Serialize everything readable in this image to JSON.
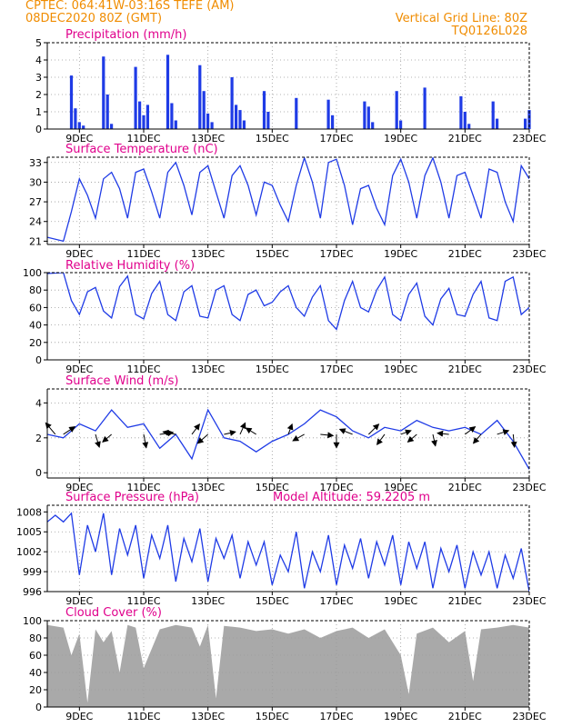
{
  "header": {
    "line1": "CPTEC:   064:41W-03:16S   TEFE (AM)",
    "line2": "08DEC2020 80Z (GMT)",
    "grid_note": "Vertical Grid Line: 80Z",
    "code": "TQ0126L028"
  },
  "colors": {
    "header": "#f08c00",
    "title": "#e0008c",
    "series": "#1f3be6",
    "cloud": "#a9a9a9",
    "grid": "#9a9a9a"
  },
  "x_axis": {
    "type": "date",
    "start": "2020-12-08T00:00Z",
    "end": "2020-12-23T00:00Z",
    "ticks": [
      {
        "label": "9DEC",
        "date": "2020-12-09"
      },
      {
        "label": "11DEC",
        "date": "2020-12-11"
      },
      {
        "label": "13DEC",
        "date": "2020-12-13"
      },
      {
        "label": "15DEC",
        "date": "2020-12-15"
      },
      {
        "label": "17DEC",
        "date": "2020-12-17"
      },
      {
        "label": "19DEC",
        "date": "2020-12-19"
      },
      {
        "label": "21DEC",
        "date": "2020-12-21"
      },
      {
        "label": "23DEC",
        "date": "2020-12-23"
      }
    ]
  },
  "chart_data": [
    {
      "type": "bar",
      "title": "Precipitation (mm/h)",
      "ylim": [
        0,
        5
      ],
      "yticks": [
        0,
        1,
        2,
        3,
        4,
        5
      ],
      "grid": true,
      "times": [
        "2020-12-08T18Z",
        "2020-12-08T21Z",
        "2020-12-09T00Z",
        "2020-12-09T03Z",
        "2020-12-09T18Z",
        "2020-12-09T21Z",
        "2020-12-10T00Z",
        "2020-12-10T18Z",
        "2020-12-10T21Z",
        "2020-12-11T00Z",
        "2020-12-11T03Z",
        "2020-12-11T18Z",
        "2020-12-11T21Z",
        "2020-12-12T00Z",
        "2020-12-12T18Z",
        "2020-12-12T21Z",
        "2020-12-13T00Z",
        "2020-12-13T03Z",
        "2020-12-13T18Z",
        "2020-12-13T21Z",
        "2020-12-14T00Z",
        "2020-12-14T03Z",
        "2020-12-14T18Z",
        "2020-12-14T21Z",
        "2020-12-15T18Z",
        "2020-12-16T18Z",
        "2020-12-16T21Z",
        "2020-12-17T21Z",
        "2020-12-18T00Z",
        "2020-12-18T03Z",
        "2020-12-18T21Z",
        "2020-12-19T00Z",
        "2020-12-19T18Z",
        "2020-12-20T21Z",
        "2020-12-21T00Z",
        "2020-12-21T03Z",
        "2020-12-21T21Z",
        "2020-12-22T00Z",
        "2020-12-22T21Z",
        "2020-12-23T00Z"
      ],
      "values": [
        3.1,
        1.2,
        0.4,
        0.2,
        4.2,
        2.0,
        0.3,
        3.6,
        1.6,
        0.8,
        1.4,
        4.3,
        1.5,
        0.5,
        3.7,
        2.2,
        0.9,
        0.4,
        3.0,
        1.4,
        1.1,
        0.5,
        2.2,
        1.0,
        1.8,
        1.7,
        0.8,
        1.6,
        1.3,
        0.4,
        2.2,
        0.5,
        2.4,
        1.9,
        1.0,
        0.3,
        1.6,
        0.6,
        0.6,
        1.1
      ]
    },
    {
      "type": "line",
      "title": "Surface Temperature (nC)",
      "ylim": [
        20.5,
        33.8
      ],
      "yticks": [
        21,
        24,
        27,
        30,
        33
      ],
      "grid": true,
      "times": [
        "2020-12-08T00Z",
        "2020-12-08T12Z",
        "2020-12-08T18Z",
        "2020-12-09T00Z",
        "2020-12-09T06Z",
        "2020-12-09T12Z",
        "2020-12-09T18Z",
        "2020-12-10T00Z",
        "2020-12-10T06Z",
        "2020-12-10T12Z",
        "2020-12-10T18Z",
        "2020-12-11T00Z",
        "2020-12-11T06Z",
        "2020-12-11T12Z",
        "2020-12-11T18Z",
        "2020-12-12T00Z",
        "2020-12-12T06Z",
        "2020-12-12T12Z",
        "2020-12-12T18Z",
        "2020-12-13T00Z",
        "2020-12-13T06Z",
        "2020-12-13T12Z",
        "2020-12-13T18Z",
        "2020-12-14T00Z",
        "2020-12-14T06Z",
        "2020-12-14T12Z",
        "2020-12-14T18Z",
        "2020-12-15T00Z",
        "2020-12-15T06Z",
        "2020-12-15T12Z",
        "2020-12-15T18Z",
        "2020-12-16T00Z",
        "2020-12-16T06Z",
        "2020-12-16T12Z",
        "2020-12-16T18Z",
        "2020-12-17T00Z",
        "2020-12-17T06Z",
        "2020-12-17T12Z",
        "2020-12-17T18Z",
        "2020-12-18T00Z",
        "2020-12-18T06Z",
        "2020-12-18T12Z",
        "2020-12-18T18Z",
        "2020-12-19T00Z",
        "2020-12-19T06Z",
        "2020-12-19T12Z",
        "2020-12-19T18Z",
        "2020-12-20T00Z",
        "2020-12-20T06Z",
        "2020-12-20T12Z",
        "2020-12-20T18Z",
        "2020-12-21T00Z",
        "2020-12-21T06Z",
        "2020-12-21T12Z",
        "2020-12-21T18Z",
        "2020-12-22T00Z",
        "2020-12-22T06Z",
        "2020-12-22T12Z",
        "2020-12-22T18Z",
        "2020-12-23T00Z"
      ],
      "values": [
        21.6,
        21.0,
        25.5,
        30.5,
        28.0,
        24.5,
        30.5,
        31.5,
        29.0,
        24.5,
        31.5,
        32.0,
        28.5,
        24.5,
        31.5,
        33.0,
        29.5,
        25.0,
        31.5,
        32.5,
        28.5,
        24.5,
        31.0,
        32.5,
        29.5,
        25.0,
        30.0,
        29.5,
        26.5,
        24.0,
        29.5,
        33.7,
        30.0,
        24.5,
        33.0,
        33.5,
        29.5,
        23.5,
        29.0,
        29.5,
        26.0,
        23.5,
        31.0,
        33.5,
        30.0,
        24.5,
        31.0,
        33.7,
        30.0,
        24.5,
        31.0,
        31.5,
        28.0,
        24.5,
        32.0,
        31.5,
        27.0,
        24.0,
        32.5,
        30.5
      ]
    },
    {
      "type": "line",
      "title": "Relative Humidity (%)",
      "ylim": [
        0,
        100
      ],
      "yticks": [
        0,
        20,
        40,
        60,
        80,
        100
      ],
      "grid": true,
      "times": [
        "2020-12-08T00Z",
        "2020-12-08T12Z",
        "2020-12-08T18Z",
        "2020-12-09T00Z",
        "2020-12-09T06Z",
        "2020-12-09T12Z",
        "2020-12-09T18Z",
        "2020-12-10T00Z",
        "2020-12-10T06Z",
        "2020-12-10T12Z",
        "2020-12-10T18Z",
        "2020-12-11T00Z",
        "2020-12-11T06Z",
        "2020-12-11T12Z",
        "2020-12-11T18Z",
        "2020-12-12T00Z",
        "2020-12-12T06Z",
        "2020-12-12T12Z",
        "2020-12-12T18Z",
        "2020-12-13T00Z",
        "2020-12-13T06Z",
        "2020-12-13T12Z",
        "2020-12-13T18Z",
        "2020-12-14T00Z",
        "2020-12-14T06Z",
        "2020-12-14T12Z",
        "2020-12-14T18Z",
        "2020-12-15T00Z",
        "2020-12-15T06Z",
        "2020-12-15T12Z",
        "2020-12-15T18Z",
        "2020-12-16T00Z",
        "2020-12-16T06Z",
        "2020-12-16T12Z",
        "2020-12-16T18Z",
        "2020-12-17T00Z",
        "2020-12-17T06Z",
        "2020-12-17T12Z",
        "2020-12-17T18Z",
        "2020-12-18T00Z",
        "2020-12-18T06Z",
        "2020-12-18T12Z",
        "2020-12-18T18Z",
        "2020-12-19T00Z",
        "2020-12-19T06Z",
        "2020-12-19T12Z",
        "2020-12-19T18Z",
        "2020-12-20T00Z",
        "2020-12-20T06Z",
        "2020-12-20T12Z",
        "2020-12-20T18Z",
        "2020-12-21T00Z",
        "2020-12-21T06Z",
        "2020-12-21T12Z",
        "2020-12-21T18Z",
        "2020-12-22T00Z",
        "2020-12-22T06Z",
        "2020-12-22T12Z",
        "2020-12-22T18Z",
        "2020-12-23T00Z"
      ],
      "values": [
        99,
        100,
        68,
        52,
        78,
        83,
        56,
        48,
        84,
        96,
        52,
        47,
        76,
        90,
        52,
        45,
        78,
        85,
        50,
        48,
        80,
        85,
        52,
        45,
        75,
        80,
        62,
        66,
        78,
        85,
        60,
        50,
        72,
        85,
        45,
        35,
        68,
        90,
        60,
        55,
        80,
        95,
        52,
        45,
        75,
        88,
        50,
        40,
        70,
        82,
        52,
        50,
        75,
        90,
        48,
        45,
        90,
        95,
        52,
        60
      ]
    },
    {
      "type": "line",
      "title": "Surface Wind (m/s)",
      "ylim": [
        -0.3,
        4.8
      ],
      "yticks": [
        0,
        2,
        4
      ],
      "grid": true,
      "times": [
        "2020-12-08T00Z",
        "2020-12-08T12Z",
        "2020-12-09T00Z",
        "2020-12-09T12Z",
        "2020-12-10T00Z",
        "2020-12-10T12Z",
        "2020-12-11T00Z",
        "2020-12-11T12Z",
        "2020-12-12T00Z",
        "2020-12-12T12Z",
        "2020-12-13T00Z",
        "2020-12-13T12Z",
        "2020-12-14T00Z",
        "2020-12-14T12Z",
        "2020-12-15T00Z",
        "2020-12-15T12Z",
        "2020-12-16T00Z",
        "2020-12-16T12Z",
        "2020-12-17T00Z",
        "2020-12-17T12Z",
        "2020-12-18T00Z",
        "2020-12-18T12Z",
        "2020-12-19T00Z",
        "2020-12-19T12Z",
        "2020-12-20T00Z",
        "2020-12-20T12Z",
        "2020-12-21T00Z",
        "2020-12-21T12Z",
        "2020-12-22T00Z",
        "2020-12-22T12Z",
        "2020-12-23T00Z"
      ],
      "values": [
        2.2,
        2.0,
        2.8,
        2.4,
        3.6,
        2.6,
        2.8,
        1.4,
        2.2,
        0.8,
        3.6,
        2.0,
        1.8,
        1.2,
        1.8,
        2.2,
        2.8,
        3.6,
        3.2,
        2.4,
        2.0,
        2.6,
        2.4,
        3.0,
        2.6,
        2.4,
        2.6,
        2.2,
        3.0,
        1.8,
        0.2
      ],
      "vectors": [
        {
          "time": "2020-12-08T06Z",
          "u": -1.5,
          "v": 1.8
        },
        {
          "time": "2020-12-08T12Z",
          "u": 1.8,
          "v": 1.2
        },
        {
          "time": "2020-12-09T12Z",
          "u": 0.6,
          "v": -2.0
        },
        {
          "time": "2020-12-10T00Z",
          "u": -1.4,
          "v": -1.2
        },
        {
          "time": "2020-12-11T00Z",
          "u": 0.4,
          "v": -2.1
        },
        {
          "time": "2020-12-11T12Z",
          "u": 2.1,
          "v": 0.3
        },
        {
          "time": "2020-12-12T00Z",
          "u": -2.0,
          "v": 0.4
        },
        {
          "time": "2020-12-12T12Z",
          "u": 1.2,
          "v": 1.6
        },
        {
          "time": "2020-12-13T00Z",
          "u": -1.6,
          "v": -1.4
        },
        {
          "time": "2020-12-13T12Z",
          "u": 1.8,
          "v": 0.4
        },
        {
          "time": "2020-12-14T00Z",
          "u": 0.8,
          "v": 1.8
        },
        {
          "time": "2020-12-14T12Z",
          "u": -1.6,
          "v": 1.0
        },
        {
          "time": "2020-12-15T12Z",
          "u": 0.6,
          "v": 1.6
        },
        {
          "time": "2020-12-16T00Z",
          "u": -1.8,
          "v": -1.0
        },
        {
          "time": "2020-12-16T12Z",
          "u": 2.0,
          "v": -0.2
        },
        {
          "time": "2020-12-17T00Z",
          "u": 0.0,
          "v": -2.1
        },
        {
          "time": "2020-12-17T12Z",
          "u": -2.0,
          "v": 0.8
        },
        {
          "time": "2020-12-18T00Z",
          "u": 1.6,
          "v": 1.6
        },
        {
          "time": "2020-12-18T12Z",
          "u": -1.2,
          "v": -1.6
        },
        {
          "time": "2020-12-19T00Z",
          "u": 1.6,
          "v": 0.6
        },
        {
          "time": "2020-12-19T12Z",
          "u": -1.4,
          "v": -1.2
        },
        {
          "time": "2020-12-20T00Z",
          "u": 0.4,
          "v": -1.8
        },
        {
          "time": "2020-12-20T12Z",
          "u": -1.8,
          "v": 0.2
        },
        {
          "time": "2020-12-21T00Z",
          "u": 1.6,
          "v": 1.2
        },
        {
          "time": "2020-12-21T12Z",
          "u": -1.2,
          "v": -1.4
        },
        {
          "time": "2020-12-22T00Z",
          "u": 1.8,
          "v": 0.6
        },
        {
          "time": "2020-12-22T12Z",
          "u": 0.2,
          "v": -2.0
        }
      ]
    },
    {
      "type": "line",
      "title": "Surface Pressure (hPa)",
      "annotation": "Model Altitude: 59.2205 m",
      "ylim": [
        996,
        1009
      ],
      "yticks": [
        996,
        999,
        1002,
        1005,
        1008
      ],
      "grid": true,
      "times": [
        "2020-12-08T00Z",
        "2020-12-08T06Z",
        "2020-12-08T12Z",
        "2020-12-08T18Z",
        "2020-12-09T00Z",
        "2020-12-09T06Z",
        "2020-12-09T12Z",
        "2020-12-09T18Z",
        "2020-12-10T00Z",
        "2020-12-10T06Z",
        "2020-12-10T12Z",
        "2020-12-10T18Z",
        "2020-12-11T00Z",
        "2020-12-11T06Z",
        "2020-12-11T12Z",
        "2020-12-11T18Z",
        "2020-12-12T00Z",
        "2020-12-12T06Z",
        "2020-12-12T12Z",
        "2020-12-12T18Z",
        "2020-12-13T00Z",
        "2020-12-13T06Z",
        "2020-12-13T12Z",
        "2020-12-13T18Z",
        "2020-12-14T00Z",
        "2020-12-14T06Z",
        "2020-12-14T12Z",
        "2020-12-14T18Z",
        "2020-12-15T00Z",
        "2020-12-15T06Z",
        "2020-12-15T12Z",
        "2020-12-15T18Z",
        "2020-12-16T00Z",
        "2020-12-16T06Z",
        "2020-12-16T12Z",
        "2020-12-16T18Z",
        "2020-12-17T00Z",
        "2020-12-17T06Z",
        "2020-12-17T12Z",
        "2020-12-17T18Z",
        "2020-12-18T00Z",
        "2020-12-18T06Z",
        "2020-12-18T12Z",
        "2020-12-18T18Z",
        "2020-12-19T00Z",
        "2020-12-19T06Z",
        "2020-12-19T12Z",
        "2020-12-19T18Z",
        "2020-12-20T00Z",
        "2020-12-20T06Z",
        "2020-12-20T12Z",
        "2020-12-20T18Z",
        "2020-12-21T00Z",
        "2020-12-21T06Z",
        "2020-12-21T12Z",
        "2020-12-21T18Z",
        "2020-12-22T00Z",
        "2020-12-22T06Z",
        "2020-12-22T12Z",
        "2020-12-22T18Z",
        "2020-12-23T00Z"
      ],
      "values": [
        1006.5,
        1007.5,
        1006.5,
        1007.8,
        998.5,
        1006.0,
        1002.0,
        1007.8,
        998.5,
        1005.5,
        1001.5,
        1006.0,
        998.0,
        1004.5,
        1001.0,
        1006.0,
        997.5,
        1004.0,
        1000.5,
        1005.5,
        997.5,
        1004.0,
        1001.0,
        1004.5,
        998.0,
        1003.5,
        1000.0,
        1003.5,
        997.0,
        1001.5,
        999.0,
        1005.0,
        996.5,
        1002.0,
        999.0,
        1004.5,
        997.0,
        1003.0,
        999.5,
        1004.0,
        998.0,
        1003.5,
        1000.0,
        1004.5,
        997.0,
        1003.5,
        999.5,
        1003.5,
        996.5,
        1002.5,
        999.0,
        1003.0,
        996.5,
        1002.0,
        998.5,
        1002.0,
        996.5,
        1001.5,
        998.0,
        1002.5,
        996.0
      ]
    },
    {
      "type": "area",
      "title": "Cloud Cover (%)",
      "ylim": [
        0,
        100
      ],
      "yticks": [
        0,
        20,
        40,
        60,
        80,
        100
      ],
      "grid": true,
      "times": [
        "2020-12-08T00Z",
        "2020-12-08T12Z",
        "2020-12-08T18Z",
        "2020-12-09T00Z",
        "2020-12-09T06Z",
        "2020-12-09T12Z",
        "2020-12-09T18Z",
        "2020-12-10T00Z",
        "2020-12-10T06Z",
        "2020-12-10T12Z",
        "2020-12-10T18Z",
        "2020-12-11T00Z",
        "2020-12-11T12Z",
        "2020-12-12T00Z",
        "2020-12-12T12Z",
        "2020-12-12T18Z",
        "2020-12-13T00Z",
        "2020-12-13T06Z",
        "2020-12-13T12Z",
        "2020-12-14T00Z",
        "2020-12-14T12Z",
        "2020-12-15T00Z",
        "2020-12-15T12Z",
        "2020-12-16T00Z",
        "2020-12-16T12Z",
        "2020-12-17T00Z",
        "2020-12-17T12Z",
        "2020-12-18T00Z",
        "2020-12-18T12Z",
        "2020-12-19T00Z",
        "2020-12-19T06Z",
        "2020-12-19T12Z",
        "2020-12-20T00Z",
        "2020-12-20T12Z",
        "2020-12-21T00Z",
        "2020-12-21T06Z",
        "2020-12-21T12Z",
        "2020-12-22T00Z",
        "2020-12-22T12Z",
        "2020-12-23T00Z"
      ],
      "values": [
        95,
        92,
        60,
        85,
        5,
        90,
        75,
        88,
        40,
        95,
        92,
        45,
        90,
        95,
        92,
        70,
        95,
        10,
        94,
        92,
        88,
        90,
        85,
        90,
        80,
        88,
        92,
        80,
        90,
        60,
        15,
        85,
        92,
        75,
        88,
        30,
        90,
        92,
        95,
        92
      ]
    }
  ]
}
